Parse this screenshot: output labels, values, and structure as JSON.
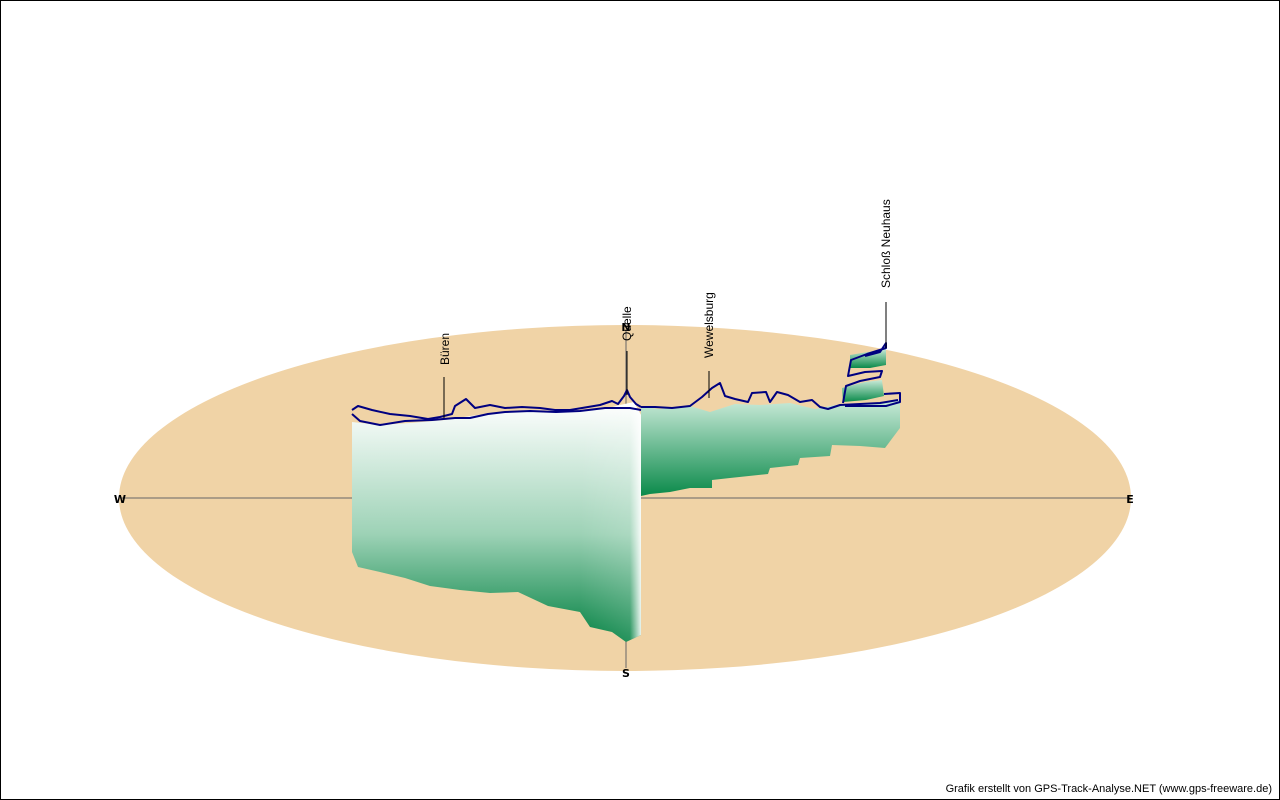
{
  "credit": "Grafik erstellt von GPS-Track-Analyse.NET (www.gps-freeware.de)",
  "colors": {
    "ground": "#F0D3A6",
    "wall_top": "#FFFFFF",
    "wall_bottom": "#008040",
    "track": "#000080",
    "axis": "#666666"
  },
  "chart_data": {
    "type": "3d-elevation-profile",
    "compass": {
      "north": "N",
      "south": "S",
      "west": "W",
      "east": "E"
    },
    "waypoints": [
      {
        "name": "Büren"
      },
      {
        "name": "Quelle"
      },
      {
        "name": "Wewelsburg"
      },
      {
        "name": "Schloß Neuhaus"
      }
    ]
  }
}
